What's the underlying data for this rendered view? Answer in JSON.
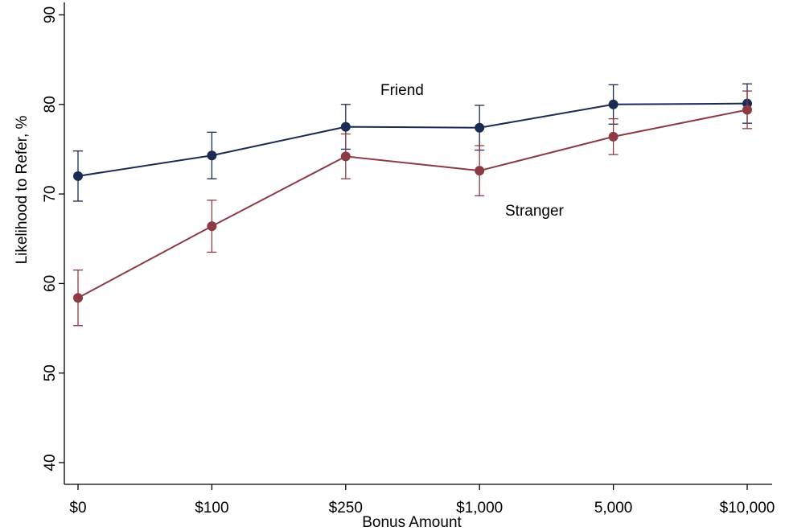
{
  "chart_data": {
    "type": "line",
    "title": "",
    "xlabel": "Bonus Amount",
    "ylabel": "Likelihood to Refer, %",
    "categories": [
      "$0",
      "$100",
      "$250",
      "$1,000",
      "5,000",
      "$10,000"
    ],
    "ylim": [
      40,
      90
    ],
    "yticks": [
      40,
      50,
      60,
      70,
      80,
      90
    ],
    "grid": false,
    "legend": "none (inline series labels)",
    "series": [
      {
        "name": "Friend",
        "color": "#1a2a52",
        "values": [
          72.0,
          74.3,
          77.5,
          77.4,
          80.0,
          80.1
        ],
        "ci_low": [
          69.2,
          71.7,
          75.0,
          74.9,
          77.8,
          77.9
        ],
        "ci_high": [
          74.8,
          76.9,
          80.0,
          79.9,
          82.2,
          82.3
        ]
      },
      {
        "name": "Stranger",
        "color": "#8e3a45",
        "values": [
          58.4,
          66.4,
          74.2,
          72.6,
          76.4,
          79.4
        ],
        "ci_low": [
          55.3,
          63.5,
          71.7,
          69.8,
          74.4,
          77.3
        ],
        "ci_high": [
          61.5,
          69.3,
          76.7,
          75.4,
          78.4,
          81.5
        ]
      }
    ]
  }
}
